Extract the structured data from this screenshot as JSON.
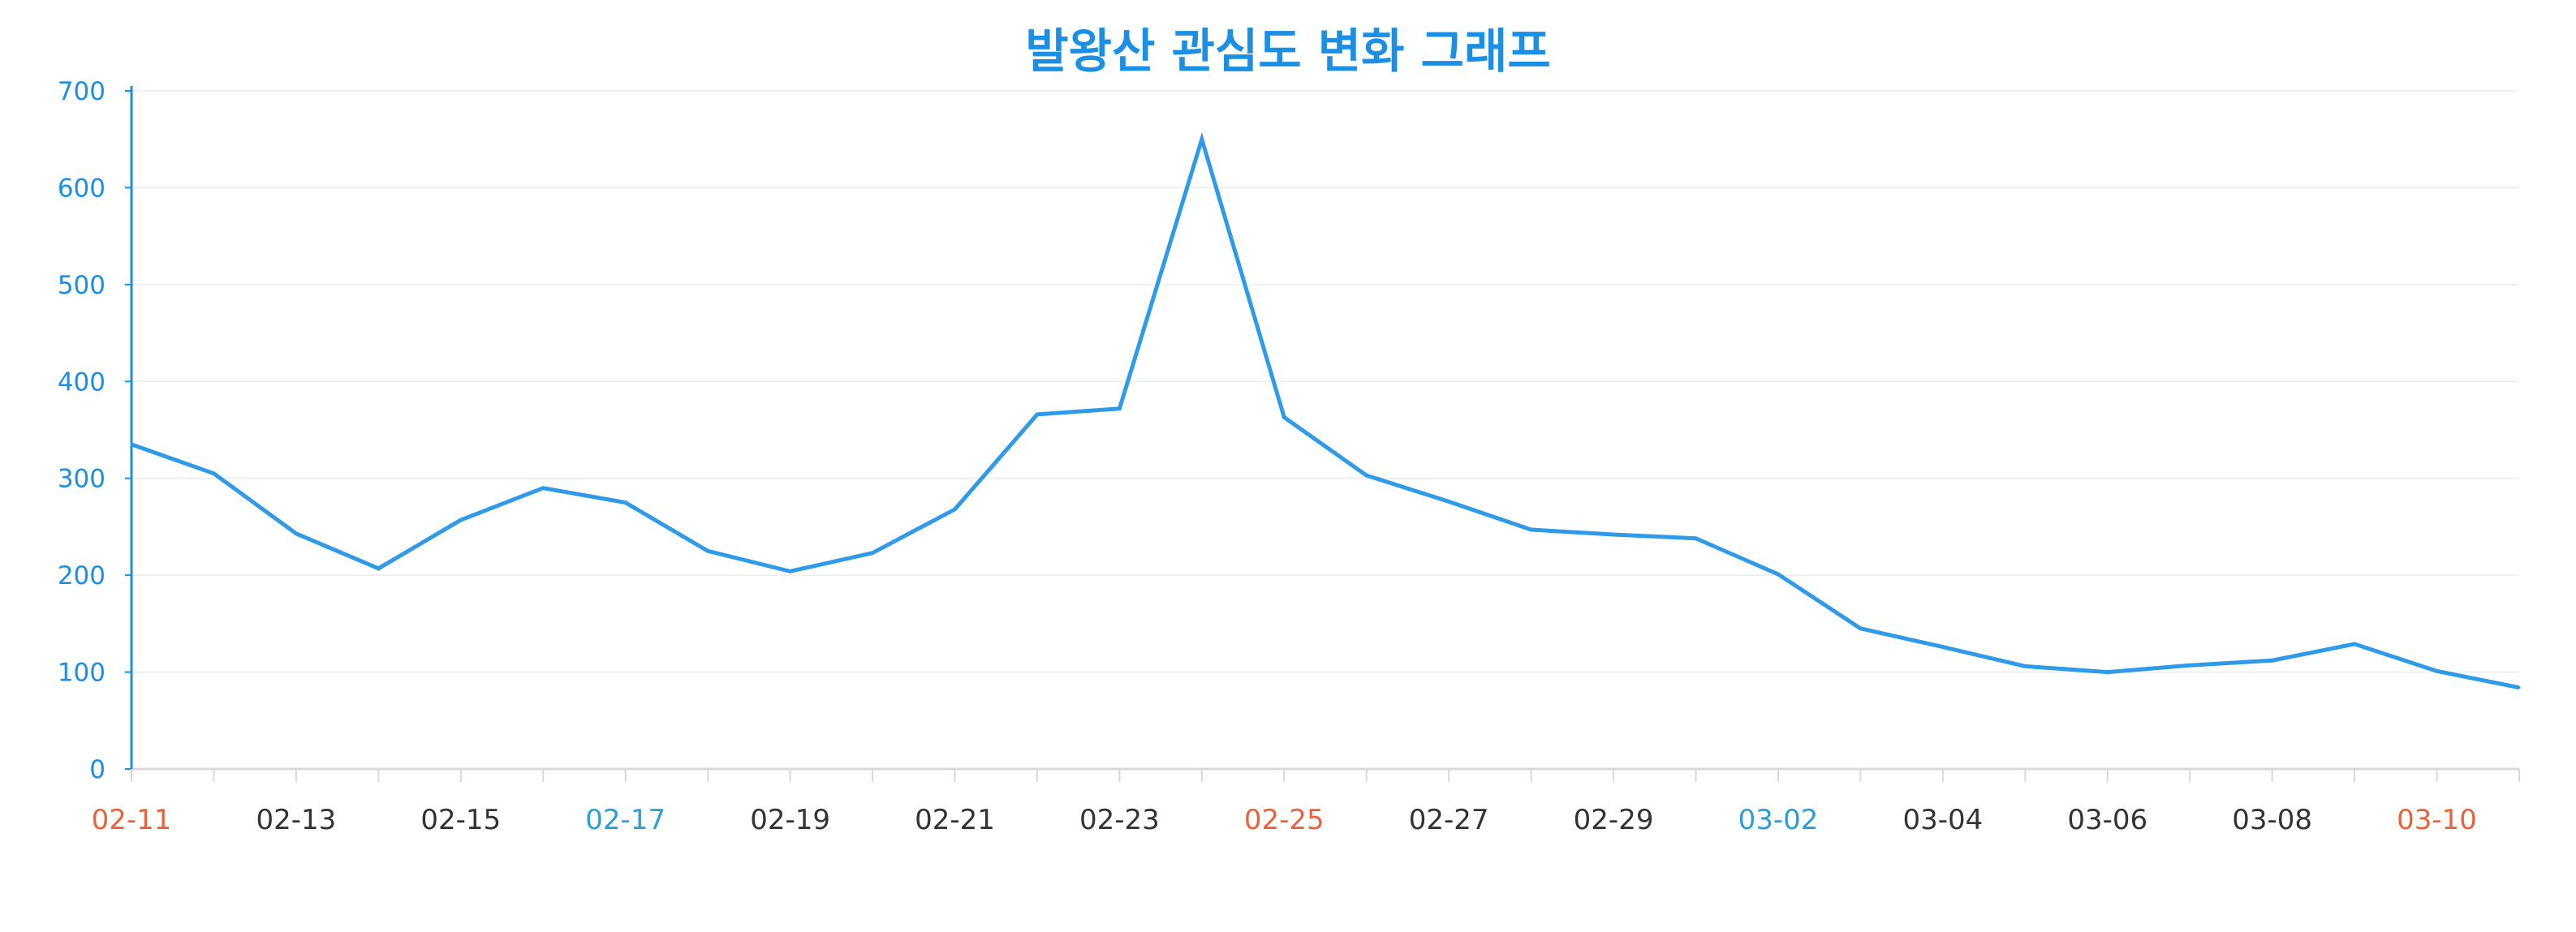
{
  "colors": {
    "title": "#1a8fe3",
    "line": "#2f9be8",
    "y_axis": "#1a8fe3",
    "y_tick_label": "#1a8fe3",
    "x_axis": "#d8d8d8",
    "grid": "#efefef",
    "x_label_default": "#333333",
    "x_label_saturday": "#2a9fd6",
    "x_label_sunday": "#e8633c"
  },
  "chart_data": {
    "type": "line",
    "title": "발왕산 관심도 변화 그래프",
    "xlabel": "",
    "ylabel": "",
    "ylim": [
      0,
      700
    ],
    "yticks": [
      0,
      100,
      200,
      300,
      400,
      500,
      600,
      700
    ],
    "grid": true,
    "legend": "none",
    "x": [
      "02-11",
      "02-12",
      "02-13",
      "02-14",
      "02-15",
      "02-16",
      "02-17",
      "02-18",
      "02-19",
      "02-20",
      "02-21",
      "02-22",
      "02-23",
      "02-24",
      "02-25",
      "02-26",
      "02-27",
      "02-28",
      "02-29",
      "03-01",
      "03-02",
      "03-03",
      "03-04",
      "03-05",
      "03-06",
      "03-07",
      "03-08",
      "03-09",
      "03-10",
      "03-11"
    ],
    "x_tick_labels": [
      {
        "label": "02-11",
        "day": "sunday"
      },
      {
        "label": "02-13",
        "day": "weekday"
      },
      {
        "label": "02-15",
        "day": "weekday"
      },
      {
        "label": "02-17",
        "day": "saturday"
      },
      {
        "label": "02-19",
        "day": "weekday"
      },
      {
        "label": "02-21",
        "day": "weekday"
      },
      {
        "label": "02-23",
        "day": "weekday"
      },
      {
        "label": "02-25",
        "day": "sunday"
      },
      {
        "label": "02-27",
        "day": "weekday"
      },
      {
        "label": "02-29",
        "day": "weekday"
      },
      {
        "label": "03-02",
        "day": "saturday"
      },
      {
        "label": "03-04",
        "day": "weekday"
      },
      {
        "label": "03-06",
        "day": "weekday"
      },
      {
        "label": "03-08",
        "day": "weekday"
      },
      {
        "label": "03-10",
        "day": "sunday"
      }
    ],
    "series": [
      {
        "values": [
          335,
          305,
          243,
          207,
          257,
          290,
          275,
          225,
          204,
          223,
          268,
          366,
          372,
          650,
          363,
          303,
          276,
          247,
          242,
          238,
          201,
          145,
          126,
          106,
          100,
          107,
          112,
          129,
          101,
          84
        ]
      }
    ]
  }
}
